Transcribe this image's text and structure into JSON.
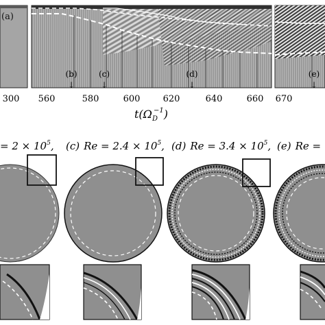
{
  "figure": {
    "panel_a_label": "(a)",
    "time_axis": {
      "label_main": "t(Ω",
      "label_sub": "D",
      "label_sup": "−1",
      "label_close": ")",
      "ticks": [
        "300",
        "560",
        "580",
        "600",
        "620",
        "640",
        "660",
        "670"
      ]
    },
    "event_markers": [
      {
        "label": "(b)",
        "arrow": "↓"
      },
      {
        "label": "(c)",
        "arrow": "↓"
      },
      {
        "label": "(d)",
        "arrow": "↓"
      },
      {
        "label": "(e)",
        "arrow": "↓"
      }
    ],
    "snapshots": [
      {
        "panel": "",
        "text": "= 2 × 10",
        "exp": "5",
        "tail": ","
      },
      {
        "panel": "(c)",
        "text": "Re = 2.4 × 10",
        "exp": "5",
        "tail": ","
      },
      {
        "panel": "(d)",
        "text": "Re = 3.4 × 10",
        "exp": "5",
        "tail": ","
      },
      {
        "panel": "(e)",
        "text": "Re =",
        "exp": "",
        "tail": ""
      }
    ]
  }
}
